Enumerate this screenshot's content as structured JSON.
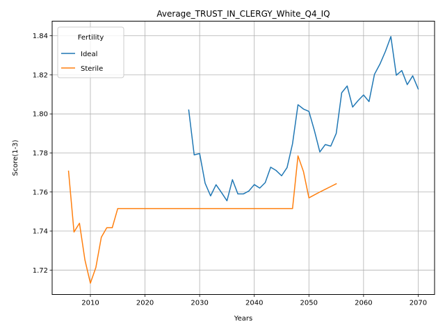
{
  "chart_data": {
    "type": "line",
    "title": "Average_TRUST_IN_CLERGY_White_Q4_IQ",
    "xlabel": "Years",
    "ylabel": "Score(1-3)",
    "xlim": [
      2003,
      2073
    ],
    "ylim": [
      1.7075,
      1.8475
    ],
    "xticks": [
      2010,
      2020,
      2030,
      2040,
      2050,
      2060,
      2070
    ],
    "yticks": [
      1.72,
      1.74,
      1.76,
      1.78,
      1.8,
      1.82,
      1.84
    ],
    "grid": true,
    "legend": {
      "title": "Fertility",
      "placement": "top-left"
    },
    "series": [
      {
        "name": "Ideal",
        "color": "#1f77b4",
        "x": [
          2028,
          2029,
          2030,
          2031,
          2032,
          2033,
          2034,
          2035,
          2036,
          2037,
          2038,
          2039,
          2040,
          2041,
          2042,
          2043,
          2044,
          2045,
          2046,
          2047,
          2048,
          2049,
          2050,
          2051,
          2052,
          2053,
          2054,
          2055,
          2056,
          2057,
          2058,
          2059,
          2060,
          2061,
          2062,
          2063,
          2064,
          2065,
          2066,
          2067,
          2068,
          2069,
          2070
        ],
        "y": [
          1.802,
          1.779,
          1.7797,
          1.7645,
          1.758,
          1.7637,
          1.7597,
          1.7555,
          1.7663,
          1.759,
          1.759,
          1.7605,
          1.7638,
          1.762,
          1.7648,
          1.7727,
          1.771,
          1.7683,
          1.7725,
          1.7847,
          1.8047,
          1.8025,
          1.8013,
          1.7915,
          1.7805,
          1.7843,
          1.7835,
          1.79,
          1.8108,
          1.8143,
          1.8035,
          1.8068,
          1.8097,
          1.8063,
          1.8203,
          1.8255,
          1.832,
          1.8396,
          1.8198,
          1.8222,
          1.815,
          1.8195,
          1.8128
        ]
      },
      {
        "name": "Sterile",
        "color": "#ff7f0e",
        "x": [
          2006,
          2007,
          2008,
          2009,
          2010,
          2011,
          2012,
          2013,
          2014,
          2015,
          2016,
          2020,
          2025,
          2030,
          2035,
          2040,
          2045,
          2047,
          2048,
          2049,
          2050,
          2051,
          2052,
          2053,
          2054,
          2055
        ],
        "y": [
          1.7707,
          1.7395,
          1.744,
          1.7252,
          1.7133,
          1.7213,
          1.7368,
          1.7417,
          1.7417,
          1.7515,
          1.7515,
          1.7515,
          1.7515,
          1.7515,
          1.7515,
          1.7515,
          1.7515,
          1.7515,
          1.7785,
          1.7705,
          1.757,
          1.7585,
          1.76,
          1.7614,
          1.7628,
          1.7642
        ]
      }
    ]
  }
}
